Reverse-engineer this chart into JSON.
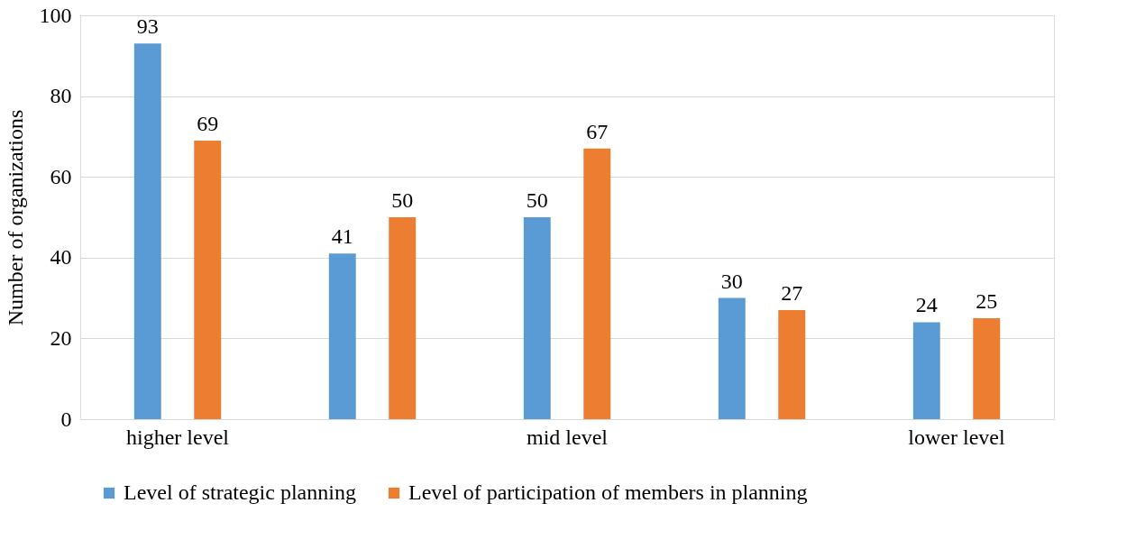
{
  "chart_data": {
    "type": "bar",
    "ylabel": "Number of organizations",
    "categories": [
      "higher level",
      null,
      "mid level",
      null,
      "lower level"
    ],
    "series": [
      {
        "name": "Level of strategic planning",
        "color": "#5b9bd5",
        "values": [
          93,
          41,
          50,
          30,
          24
        ]
      },
      {
        "name": "Level of participation of members in planning",
        "color": "#ed7d31",
        "values": [
          69,
          50,
          67,
          27,
          25
        ]
      }
    ],
    "ylim": [
      0,
      100
    ],
    "yticks": [
      0,
      20,
      40,
      60,
      80,
      100
    ],
    "grid": "y",
    "legend": "bottom",
    "data_labels": true
  }
}
